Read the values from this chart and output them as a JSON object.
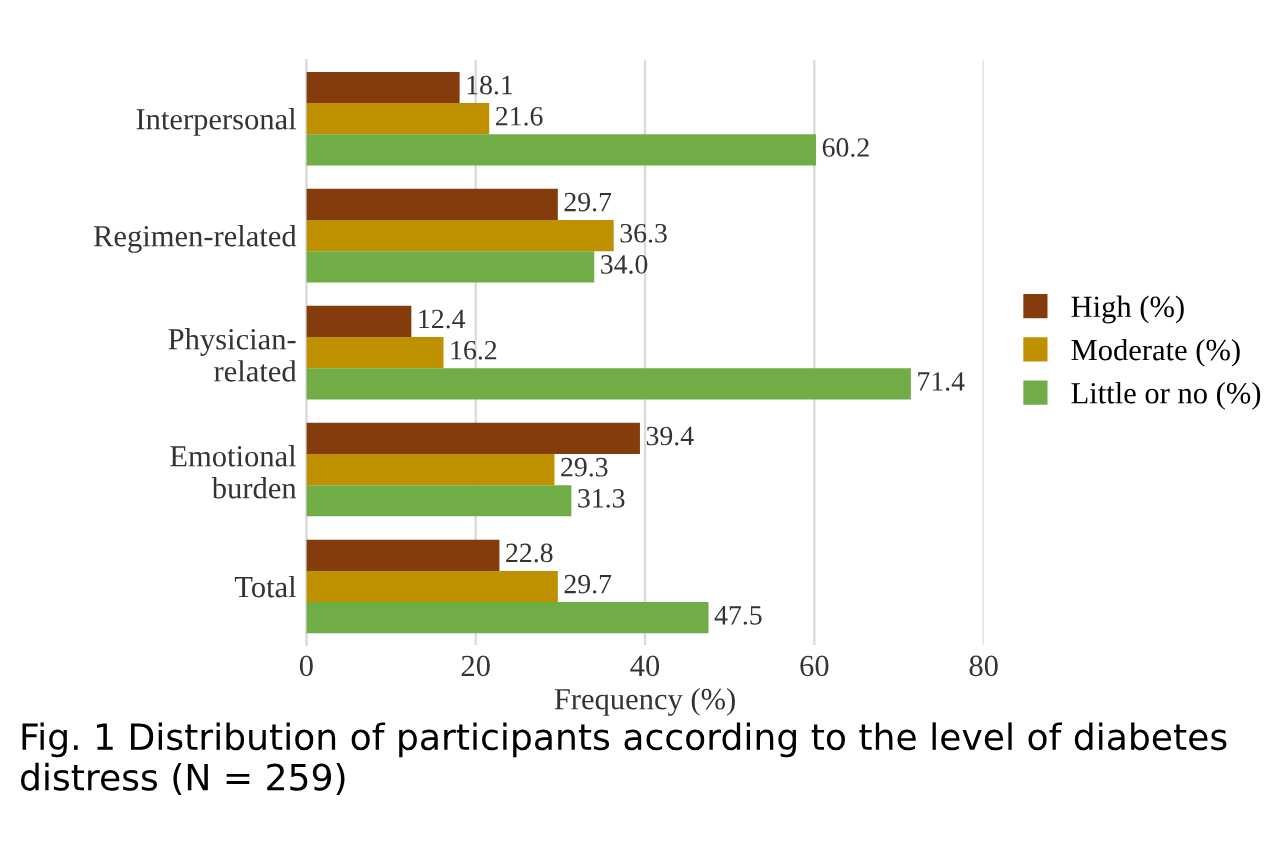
{
  "chart_data": {
    "type": "bar",
    "orientation": "horizontal",
    "xlabel": "Frequency (%)",
    "categories": [
      "Interpersonal",
      "Regimen-related",
      "Physician-\nrelated",
      "Emotional\nburden",
      "Total"
    ],
    "series": [
      {
        "name": "High (%)",
        "color": "#843c0c",
        "values": [
          18.1,
          29.7,
          12.4,
          39.4,
          22.8
        ]
      },
      {
        "name": "Moderate (%)",
        "color": "#bf9000",
        "values": [
          21.6,
          36.3,
          16.2,
          29.3,
          29.7
        ]
      },
      {
        "name": "Little or no (%)",
        "color": "#70ad47",
        "values": [
          60.2,
          34.0,
          71.4,
          31.3,
          47.5
        ]
      }
    ],
    "value_labels": [
      [
        "18.1",
        "29.7",
        "12.4",
        "39.4",
        "22.8"
      ],
      [
        "21.6",
        "36.3",
        "16.2",
        "29.3",
        "29.7"
      ],
      [
        "60.2",
        "34.0",
        "71.4",
        "31.3",
        "47.5"
      ]
    ],
    "xlim": [
      0,
      80
    ],
    "xticks": [
      0,
      20,
      40,
      60,
      80
    ],
    "grid": "x",
    "legend": "right",
    "annotations": [
      "Fig. 1 Distribution of participants according to the level of diabetes distress (N = 259)"
    ]
  }
}
